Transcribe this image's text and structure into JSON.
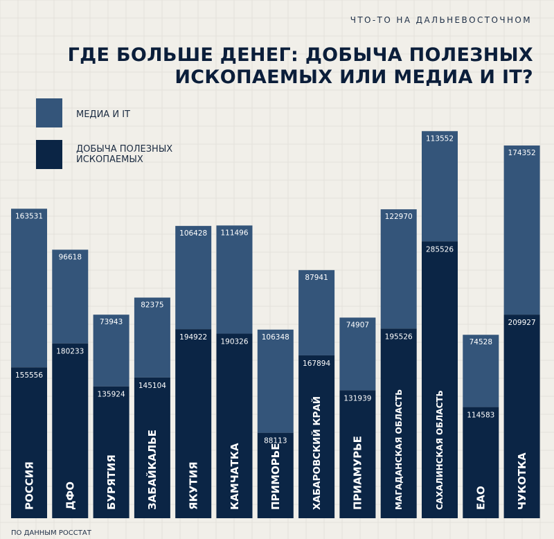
{
  "brand": "ЧТО-ТО НА ДАЛЬНЕВОСТОЧНОМ",
  "source": "ПО ДАННЫМ РОССТАТ",
  "colors": {
    "media": "#34557a",
    "mining": "#0b2545",
    "background": "#f1efe9"
  },
  "chart_data": {
    "type": "bar",
    "stacked": true,
    "title": "ГДЕ БОЛЬШЕ ДЕНЕГ: ДОБЫЧА ПОЛЕЗНЫХ ИСКОПАЕМЫХ ИЛИ МЕДИА И IT?",
    "xlabel": "",
    "ylabel": "",
    "ylim": [
      0,
      400000
    ],
    "grid": true,
    "legend_position": "top-left",
    "categories": [
      "РОССИЯ",
      "ДФО",
      "БУРЯТИЯ",
      "ЗАБАЙКАЛЬЕ",
      "ЯКУТИЯ",
      "КАМЧАТКА",
      "ПРИМОРЬЕ",
      "ХАБАРОВСКИЙ КРАЙ",
      "ПРИАМУРЬЕ",
      "МАГАДАНСКАЯ ОБЛАСТЬ",
      "САХАЛИНСКАЯ ОБЛАСТЬ",
      "ЕАО",
      "ЧУКОТКА"
    ],
    "series": [
      {
        "name": "ДОБЫЧА ПОЛЕЗНЫХ ИСКОПАЕМЫХ",
        "values": [
          155556,
          180233,
          135924,
          145104,
          194922,
          190326,
          88113,
          167894,
          131939,
          195526,
          285526,
          114583,
          209927
        ]
      },
      {
        "name": "МЕДИА И IT",
        "values": [
          163531,
          96618,
          73943,
          82375,
          106428,
          111496,
          106348,
          87941,
          74907,
          122970,
          113552,
          74528,
          174352
        ]
      }
    ]
  }
}
